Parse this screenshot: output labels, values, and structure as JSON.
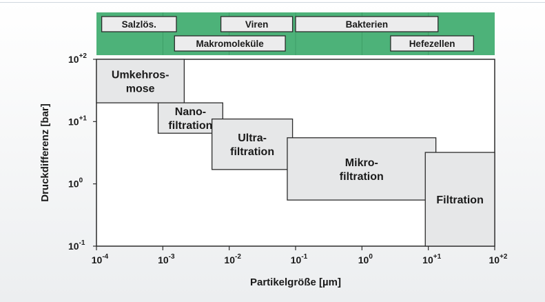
{
  "chart_data": {
    "type": "range-boxes",
    "title": "",
    "xlabel": "Partikelgröße [µm]",
    "ylabel": "Druckdifferenz [bar]",
    "x_scale": "log",
    "y_scale": "log",
    "xlim": [
      0.0001,
      100
    ],
    "ylim": [
      0.1,
      100
    ],
    "x_ticks": [
      {
        "value": 0.0001,
        "base": "10",
        "exp": "-4"
      },
      {
        "value": 0.001,
        "base": "10",
        "exp": "-3"
      },
      {
        "value": 0.01,
        "base": "10",
        "exp": "-2"
      },
      {
        "value": 0.1,
        "base": "10",
        "exp": "-1"
      },
      {
        "value": 1,
        "base": "10",
        "exp": "0"
      },
      {
        "value": 10,
        "base": "10",
        "exp": "+1"
      },
      {
        "value": 100,
        "base": "10",
        "exp": "+2"
      }
    ],
    "y_ticks": [
      {
        "value": 0.1,
        "base": "10",
        "exp": "-1"
      },
      {
        "value": 1,
        "base": "10",
        "exp": "0"
      },
      {
        "value": 10,
        "base": "10",
        "exp": "+1"
      },
      {
        "value": 100,
        "base": "10",
        "exp": "+2"
      }
    ],
    "processes": [
      {
        "lines": [
          "Umkehros-",
          "mose"
        ],
        "x": [
          0.0001,
          0.0021
        ],
        "y": [
          20,
          100
        ]
      },
      {
        "lines": [
          "Nano-",
          "filtration"
        ],
        "x": [
          0.00085,
          0.008
        ],
        "y": [
          6.5,
          20
        ]
      },
      {
        "lines": [
          "Ultra-",
          "filtration"
        ],
        "x": [
          0.0055,
          0.09
        ],
        "y": [
          1.7,
          11
        ]
      },
      {
        "lines": [
          "Mikro-",
          "filtration"
        ],
        "x": [
          0.075,
          13
        ],
        "y": [
          0.55,
          5.5
        ]
      },
      {
        "lines": [
          "Filtration"
        ],
        "x": [
          9,
          100
        ],
        "y": [
          0.1,
          3.2
        ]
      }
    ],
    "particle_ranges": [
      {
        "label": "Salzlös.",
        "row": 1,
        "x": [
          0.00012,
          0.0016
        ]
      },
      {
        "label": "Viren",
        "row": 1,
        "x": [
          0.0075,
          0.09
        ]
      },
      {
        "label": "Bakterien",
        "row": 1,
        "x": [
          0.1,
          14
        ]
      },
      {
        "label": "Makromoleküle",
        "row": 2,
        "x": [
          0.0015,
          0.07
        ]
      },
      {
        "label": "Hefezellen",
        "row": 2,
        "x": [
          2.7,
          48
        ]
      }
    ],
    "colors": {
      "band": "#4db279",
      "box_fill": "#ececed",
      "process_fill": "#e6e7e8",
      "frame": "#2b2b2b",
      "text": "#1a1a1a"
    },
    "grid": false
  }
}
